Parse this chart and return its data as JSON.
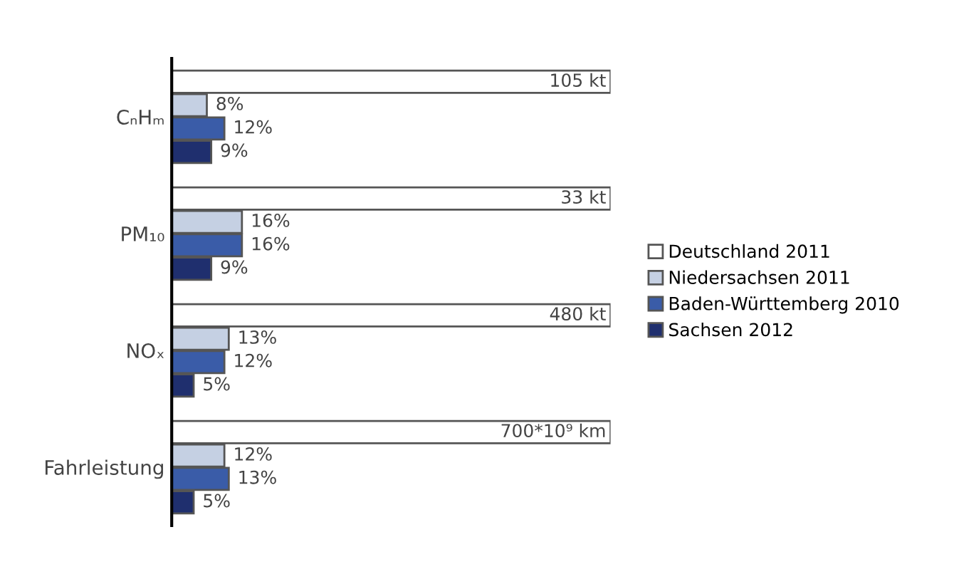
{
  "chart_data": {
    "type": "bar",
    "orientation": "horizontal",
    "legend": "right",
    "grid": false,
    "tick_labels": "y",
    "xlim": [
      0,
      100
    ],
    "categories": [
      "CₙHₘ",
      "PM₁₀",
      "NOₓ",
      "Fahrleistung"
    ],
    "series": [
      {
        "name": "Deutschland 2011",
        "color": "#ffffff",
        "values": [
          100,
          100,
          100,
          100
        ]
      },
      {
        "name": "Niedersachsen 2011",
        "color": "#c5d0e3",
        "values": [
          8,
          16,
          13,
          12
        ],
        "value_labels": [
          "8%",
          "16%",
          "13%",
          "12%"
        ]
      },
      {
        "name": "Baden-Württemberg 2010",
        "color": "#3a5ca8",
        "values": [
          12,
          16,
          12,
          13
        ],
        "value_labels": [
          "12%",
          "16%",
          "12%",
          "13%"
        ]
      },
      {
        "name": "Sachsen 2012",
        "color": "#1f2f6e",
        "values": [
          9,
          9,
          5,
          5
        ],
        "value_labels": [
          "9%",
          "9%",
          "5%",
          "5%"
        ]
      }
    ],
    "annotations": [
      "105 kt",
      "33 kt",
      "480 kt",
      "700*10⁹ km"
    ]
  }
}
